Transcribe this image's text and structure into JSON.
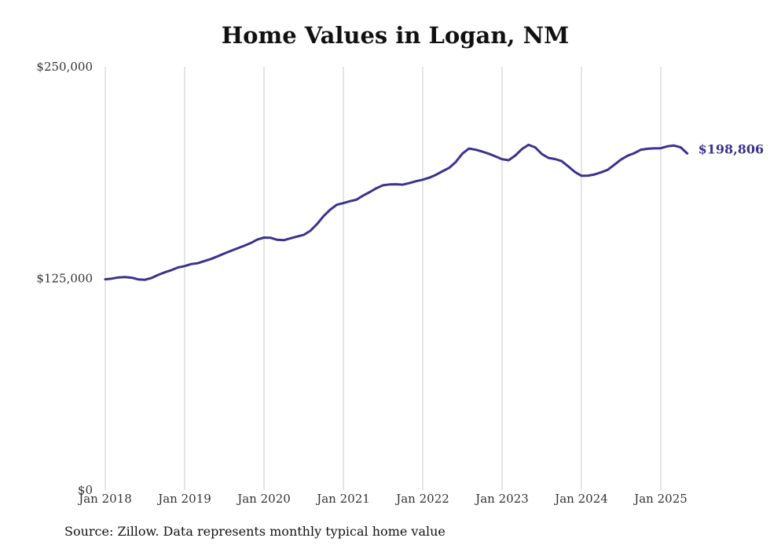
{
  "chart_data": {
    "type": "line",
    "title": "Home Values in Logan, NM",
    "xlabel": "",
    "ylabel": "",
    "ylim": [
      0,
      250000
    ],
    "y_ticks": [
      {
        "value": 0,
        "label": "$0"
      },
      {
        "value": 125000,
        "label": "$125,000"
      },
      {
        "value": 250000,
        "label": "$250,000"
      }
    ],
    "x_range": [
      "2018-01",
      "2025-05"
    ],
    "x_ticks": [
      "Jan 2018",
      "Jan 2019",
      "Jan 2020",
      "Jan 2021",
      "Jan 2022",
      "Jan 2023",
      "Jan 2024",
      "Jan 2025"
    ],
    "grid": "vertical",
    "line_color": "#3b3290",
    "end_label": "$198,806",
    "series": [
      {
        "x": [
          "2018-01",
          "2018-02",
          "2018-03",
          "2018-04",
          "2018-05",
          "2018-06",
          "2018-07",
          "2018-08",
          "2018-09",
          "2018-10",
          "2018-11",
          "2018-12",
          "2019-01",
          "2019-02",
          "2019-03",
          "2019-04",
          "2019-05",
          "2019-06",
          "2019-07",
          "2019-08",
          "2019-09",
          "2019-10",
          "2019-11",
          "2019-12",
          "2020-01",
          "2020-02",
          "2020-03",
          "2020-04",
          "2020-05",
          "2020-06",
          "2020-07",
          "2020-08",
          "2020-09",
          "2020-10",
          "2020-11",
          "2020-12",
          "2021-01",
          "2021-02",
          "2021-03",
          "2021-04",
          "2021-05",
          "2021-06",
          "2021-07",
          "2021-08",
          "2021-09",
          "2021-10",
          "2021-11",
          "2021-12",
          "2022-01",
          "2022-02",
          "2022-03",
          "2022-04",
          "2022-05",
          "2022-06",
          "2022-07",
          "2022-08",
          "2022-09",
          "2022-10",
          "2022-11",
          "2022-12",
          "2023-01",
          "2023-02",
          "2023-03",
          "2023-04",
          "2023-05",
          "2023-06",
          "2023-07",
          "2023-08",
          "2023-09",
          "2023-10",
          "2023-11",
          "2023-12",
          "2024-01",
          "2024-02",
          "2024-03",
          "2024-04",
          "2024-05",
          "2024-06",
          "2024-07",
          "2024-08",
          "2024-09",
          "2024-10",
          "2024-11",
          "2024-12",
          "2025-01",
          "2025-02",
          "2025-03",
          "2025-04",
          "2025-05"
        ],
        "values": [
          124500,
          124900,
          125600,
          125800,
          125400,
          124400,
          124200,
          125300,
          127100,
          128600,
          129900,
          131500,
          132300,
          133500,
          134000,
          135300,
          136500,
          138100,
          139700,
          141300,
          142800,
          144300,
          145900,
          148000,
          149100,
          149000,
          147800,
          147600,
          148700,
          149700,
          150700,
          153100,
          157000,
          161800,
          165600,
          168500,
          169500,
          170600,
          171500,
          174000,
          176000,
          178300,
          180000,
          180500,
          180600,
          180400,
          181300,
          182400,
          183300,
          184500,
          186200,
          188300,
          190300,
          193800,
          198700,
          201700,
          201000,
          199900,
          198600,
          197100,
          195400,
          194800,
          197600,
          201400,
          203900,
          202400,
          198500,
          196200,
          195500,
          194300,
          191200,
          187900,
          185600,
          185700,
          186400,
          187700,
          189200,
          192200,
          195200,
          197500,
          199000,
          201000,
          201600,
          201800,
          201900,
          203000,
          203500,
          202400,
          198806
        ]
      }
    ]
  },
  "source_text": "Source: Zillow. Data represents monthly typical home value"
}
